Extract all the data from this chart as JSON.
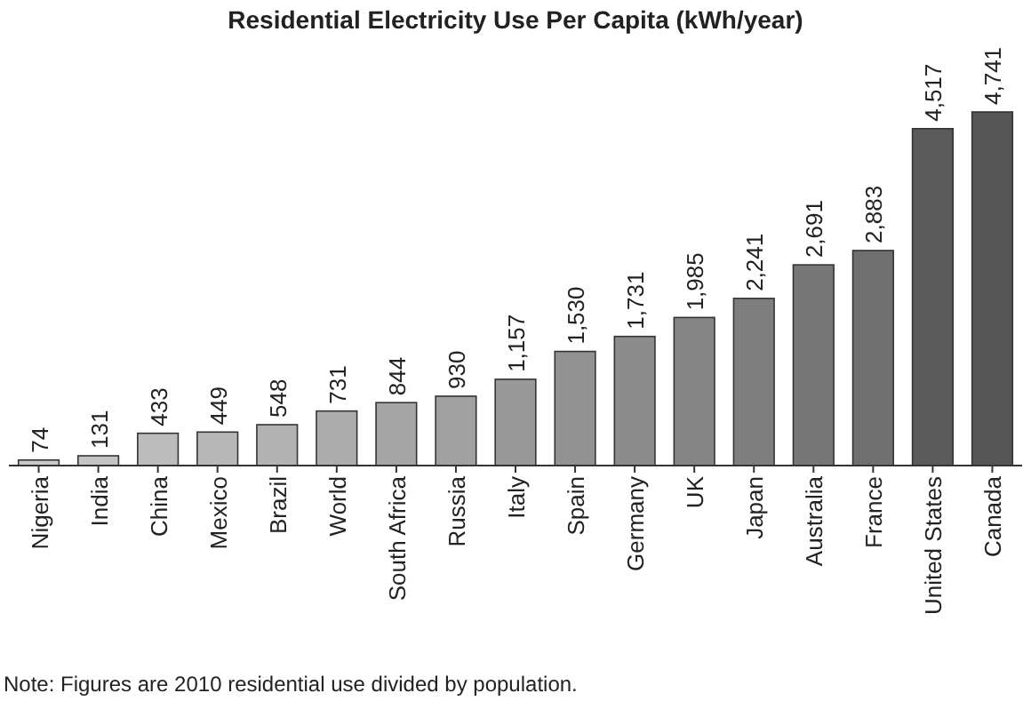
{
  "chart_data": {
    "type": "bar",
    "title": "Residential Electricity Use Per Capita (kWh/year)",
    "categories": [
      "Nigeria",
      "India",
      "China",
      "Mexico",
      "Brazil",
      "World",
      "South Africa",
      "Russia",
      "Italy",
      "Spain",
      "Germany",
      "UK",
      "Japan",
      "Australia",
      "France",
      "United States",
      "Canada"
    ],
    "values": [
      74,
      131,
      433,
      449,
      548,
      731,
      844,
      930,
      1157,
      1530,
      1731,
      1985,
      2241,
      2691,
      2883,
      4517,
      4741
    ],
    "colors": [
      "#c9c9c9",
      "#c4c4c4",
      "#bcbcbc",
      "#b8b8b8",
      "#b3b3b3",
      "#acacac",
      "#a6a6a6",
      "#a0a0a0",
      "#999999",
      "#929292",
      "#8c8c8c",
      "#858585",
      "#7e7e7e",
      "#777777",
      "#707070",
      "#5a5a5a",
      "#555555"
    ],
    "value_labels": [
      "74",
      "131",
      "433",
      "449",
      "548",
      "731",
      "844",
      "930",
      "1,157",
      "1,530",
      "1,731",
      "1,985",
      "2,241",
      "2,691",
      "2,883",
      "4,517",
      "4,741"
    ],
    "annotations": [
      "Note: Figures are 2010 residential use divided by population."
    ]
  }
}
